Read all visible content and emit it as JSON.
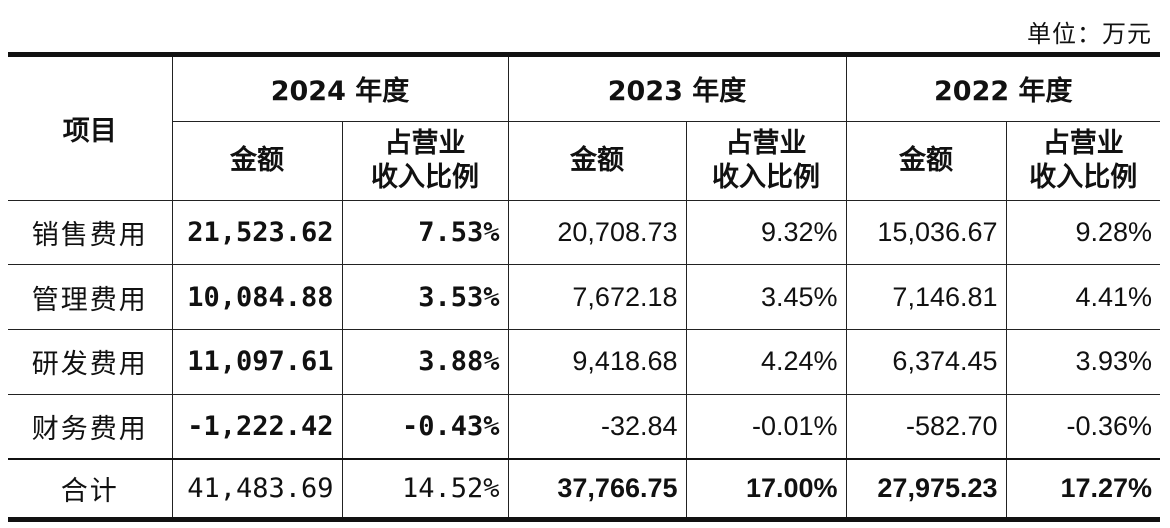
{
  "unit_label": "单位：万元",
  "header": {
    "item": "项目",
    "years": [
      "2024 年度",
      "2023 年度",
      "2022 年度"
    ],
    "amount": "金额",
    "ratio_line1": "占营业",
    "ratio_line2": "收入比例"
  },
  "rows": [
    {
      "name": "销售费用",
      "v2024": "21,523.62",
      "r2024": "7.53%",
      "v2023": "20,708.73",
      "r2023": "9.32%",
      "v2022": "15,036.67",
      "r2022": "9.28%"
    },
    {
      "name": "管理费用",
      "v2024": "10,084.88",
      "r2024": "3.53%",
      "v2023": "7,672.18",
      "r2023": "3.45%",
      "v2022": "7,146.81",
      "r2022": "4.41%"
    },
    {
      "name": "研发费用",
      "v2024": "11,097.61",
      "r2024": "3.88%",
      "v2023": "9,418.68",
      "r2023": "4.24%",
      "v2022": "6,374.45",
      "r2022": "3.93%"
    },
    {
      "name": "财务费用",
      "v2024": "-1,222.42",
      "r2024": "-0.43%",
      "v2023": "-32.84",
      "r2023": "-0.01%",
      "v2022": "-582.70",
      "r2022": "-0.36%"
    }
  ],
  "total": {
    "name": "合计",
    "v2024": "41,483.69",
    "r2024": "14.52%",
    "v2023": "37,766.75",
    "r2023": "17.00%",
    "v2022": "27,975.23",
    "r2022": "17.27%"
  }
}
